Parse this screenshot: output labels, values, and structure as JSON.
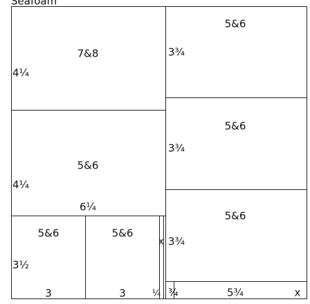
{
  "title": "Seafoam",
  "pieces": [
    {
      "name": "7&8",
      "height": "4¼"
    },
    {
      "name": "5&6",
      "height": "4¼",
      "width": "6¼"
    },
    {
      "name": "5&6",
      "height": "3½",
      "width": "3"
    },
    {
      "name": "5&6",
      "width": "3"
    },
    {
      "name": "x",
      "width": "¼"
    },
    {
      "name": "5&6",
      "height": "3¾"
    },
    {
      "name": "5&6",
      "height": "3¾"
    },
    {
      "name": "5&6",
      "height": "3¾"
    },
    {
      "name": "x",
      "height": "¾",
      "width": "5¾"
    }
  ]
}
